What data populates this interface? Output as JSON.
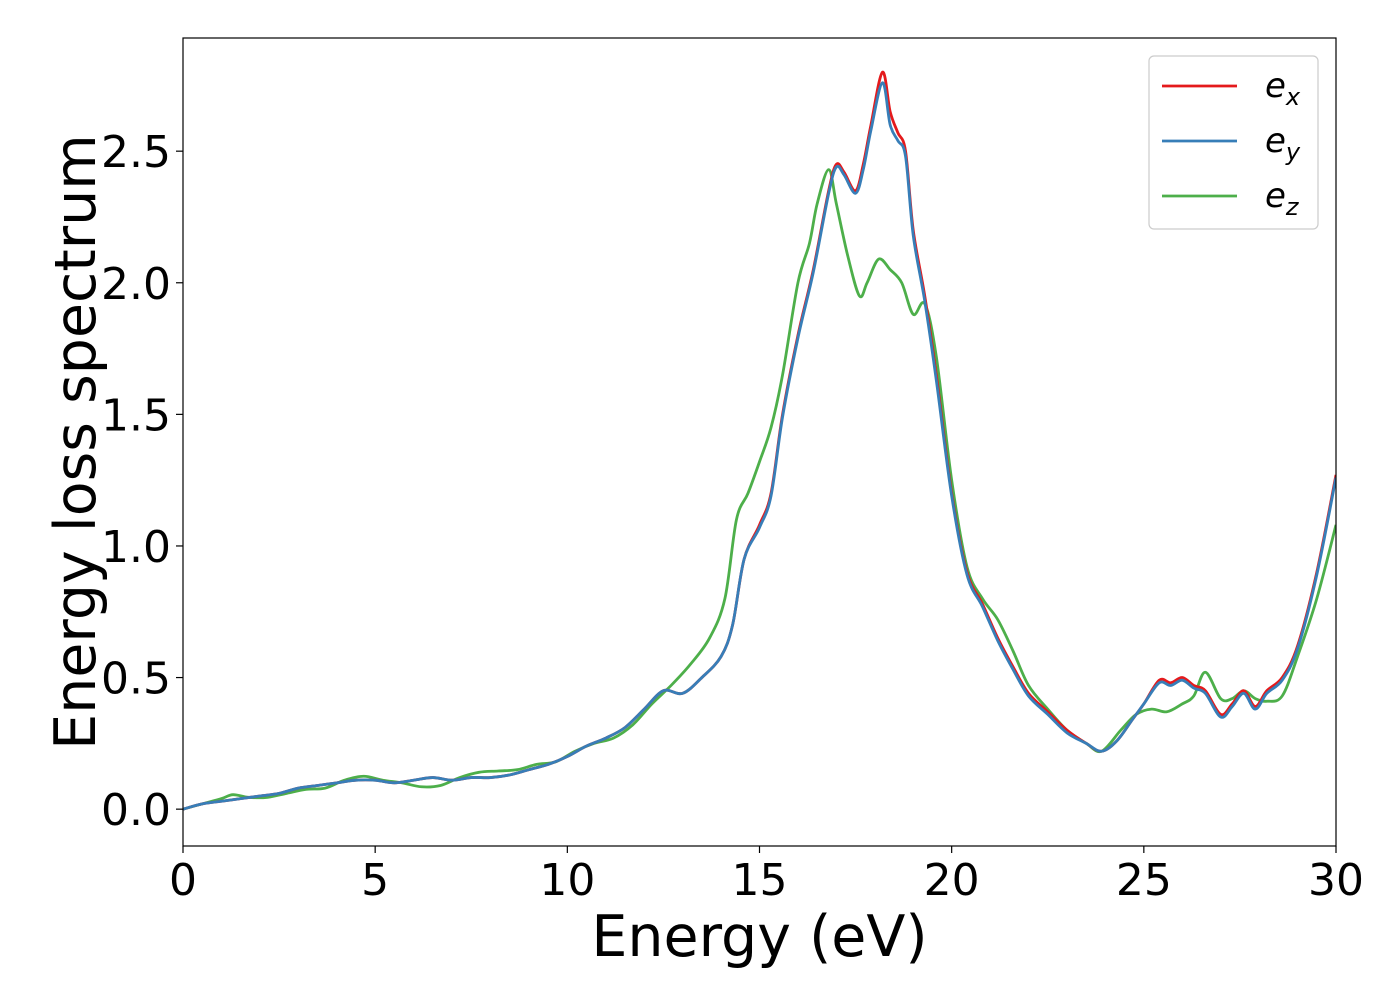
{
  "chart_data": {
    "type": "line",
    "title": "",
    "xlabel": "Energy (eV)",
    "ylabel": "Energy loss spectrum",
    "xlim": [
      0,
      30
    ],
    "ylim": [
      -0.14,
      2.93
    ],
    "xticks": [
      0,
      5,
      10,
      15,
      20,
      25,
      30
    ],
    "xtick_labels": [
      "0",
      "5",
      "10",
      "15",
      "20",
      "25",
      "30"
    ],
    "yticks": [
      0.0,
      0.5,
      1.0,
      1.5,
      2.0,
      2.5
    ],
    "ytick_labels": [
      "0.0",
      "0.5",
      "1.0",
      "1.5",
      "2.0",
      "2.5"
    ],
    "grid": false,
    "legend_position": "top-right",
    "series": [
      {
        "name": "e",
        "subscript": "x",
        "color": "#e41a1c",
        "x": [
          0,
          0.5,
          1,
          1.5,
          2,
          2.5,
          3,
          3.5,
          4,
          4.5,
          5,
          5.5,
          6,
          6.5,
          7,
          7.5,
          8,
          8.5,
          9,
          9.5,
          10,
          10.5,
          11,
          11.5,
          12,
          12.5,
          13,
          13.5,
          14,
          14.3,
          14.6,
          15,
          15.3,
          15.6,
          16,
          16.4,
          16.8,
          17,
          17.2,
          17.5,
          17.7,
          17.9,
          18.2,
          18.4,
          18.6,
          18.8,
          19,
          19.3,
          19.6,
          20,
          20.4,
          20.8,
          21.2,
          21.6,
          22,
          22.5,
          23,
          23.5,
          23.9,
          24.3,
          24.7,
          25,
          25.4,
          25.7,
          26,
          26.3,
          26.6,
          27,
          27.3,
          27.6,
          27.9,
          28.2,
          28.6,
          29,
          29.5,
          30
        ],
        "values": [
          0.0,
          0.02,
          0.03,
          0.04,
          0.05,
          0.06,
          0.08,
          0.09,
          0.1,
          0.11,
          0.11,
          0.1,
          0.11,
          0.12,
          0.11,
          0.12,
          0.12,
          0.13,
          0.15,
          0.17,
          0.2,
          0.24,
          0.27,
          0.31,
          0.38,
          0.45,
          0.44,
          0.5,
          0.58,
          0.7,
          0.95,
          1.08,
          1.2,
          1.5,
          1.8,
          2.05,
          2.35,
          2.45,
          2.42,
          2.35,
          2.45,
          2.6,
          2.8,
          2.65,
          2.57,
          2.5,
          2.2,
          1.95,
          1.65,
          1.2,
          0.9,
          0.78,
          0.65,
          0.54,
          0.44,
          0.37,
          0.3,
          0.25,
          0.22,
          0.26,
          0.34,
          0.4,
          0.49,
          0.48,
          0.5,
          0.47,
          0.45,
          0.36,
          0.4,
          0.45,
          0.39,
          0.45,
          0.5,
          0.62,
          0.9,
          1.27
        ]
      },
      {
        "name": "e",
        "subscript": "y",
        "color": "#377eb8",
        "x": [
          0,
          0.5,
          1,
          1.5,
          2,
          2.5,
          3,
          3.5,
          4,
          4.5,
          5,
          5.5,
          6,
          6.5,
          7,
          7.5,
          8,
          8.5,
          9,
          9.5,
          10,
          10.5,
          11,
          11.5,
          12,
          12.5,
          13,
          13.5,
          14,
          14.3,
          14.6,
          15,
          15.3,
          15.6,
          16,
          16.4,
          16.8,
          17,
          17.2,
          17.5,
          17.7,
          17.9,
          18.2,
          18.4,
          18.6,
          18.8,
          19,
          19.3,
          19.6,
          20,
          20.4,
          20.8,
          21.2,
          21.6,
          22,
          22.5,
          23,
          23.5,
          23.9,
          24.3,
          24.7,
          25,
          25.4,
          25.7,
          26,
          26.3,
          26.6,
          27,
          27.3,
          27.6,
          27.9,
          28.2,
          28.6,
          29,
          29.5,
          30
        ],
        "values": [
          0.0,
          0.02,
          0.03,
          0.04,
          0.05,
          0.06,
          0.08,
          0.09,
          0.1,
          0.11,
          0.11,
          0.1,
          0.11,
          0.12,
          0.11,
          0.12,
          0.12,
          0.13,
          0.15,
          0.17,
          0.2,
          0.24,
          0.27,
          0.31,
          0.38,
          0.45,
          0.44,
          0.5,
          0.58,
          0.7,
          0.95,
          1.07,
          1.19,
          1.49,
          1.79,
          2.04,
          2.34,
          2.44,
          2.41,
          2.34,
          2.43,
          2.58,
          2.76,
          2.6,
          2.54,
          2.48,
          2.18,
          1.93,
          1.63,
          1.19,
          0.89,
          0.77,
          0.64,
          0.53,
          0.43,
          0.36,
          0.29,
          0.25,
          0.22,
          0.26,
          0.34,
          0.4,
          0.48,
          0.47,
          0.49,
          0.46,
          0.44,
          0.35,
          0.39,
          0.44,
          0.38,
          0.44,
          0.49,
          0.61,
          0.89,
          1.26
        ]
      },
      {
        "name": "e",
        "subscript": "z",
        "color": "#4daf4a",
        "x": [
          0,
          0.5,
          1,
          1.3,
          1.7,
          2.2,
          2.7,
          3.2,
          3.7,
          4.2,
          4.7,
          5.2,
          5.7,
          6.2,
          6.7,
          7.2,
          7.7,
          8.2,
          8.7,
          9.2,
          9.7,
          10.2,
          10.7,
          11.2,
          11.7,
          12.2,
          12.7,
          13.2,
          13.7,
          14.1,
          14.4,
          14.7,
          15,
          15.3,
          15.6,
          16,
          16.3,
          16.5,
          16.8,
          17,
          17.3,
          17.6,
          17.8,
          18.1,
          18.4,
          18.7,
          19,
          19.3,
          19.6,
          20,
          20.4,
          20.8,
          21.2,
          21.6,
          22,
          22.5,
          23,
          23.5,
          23.9,
          24.4,
          24.8,
          25.2,
          25.6,
          26,
          26.3,
          26.6,
          27,
          27.3,
          27.6,
          27.9,
          28.2,
          28.6,
          29,
          29.5,
          30
        ],
        "values": [
          0.0,
          0.02,
          0.04,
          0.055,
          0.045,
          0.045,
          0.06,
          0.075,
          0.08,
          0.11,
          0.125,
          0.11,
          0.1,
          0.085,
          0.09,
          0.12,
          0.14,
          0.145,
          0.15,
          0.17,
          0.18,
          0.22,
          0.25,
          0.27,
          0.32,
          0.4,
          0.47,
          0.55,
          0.65,
          0.8,
          1.1,
          1.2,
          1.32,
          1.45,
          1.65,
          2.0,
          2.15,
          2.3,
          2.43,
          2.3,
          2.1,
          1.95,
          2.0,
          2.09,
          2.05,
          2.0,
          1.88,
          1.92,
          1.72,
          1.25,
          0.92,
          0.8,
          0.72,
          0.6,
          0.47,
          0.38,
          0.3,
          0.25,
          0.22,
          0.3,
          0.36,
          0.38,
          0.37,
          0.4,
          0.43,
          0.52,
          0.42,
          0.42,
          0.45,
          0.42,
          0.41,
          0.43,
          0.58,
          0.8,
          1.08
        ]
      }
    ]
  }
}
